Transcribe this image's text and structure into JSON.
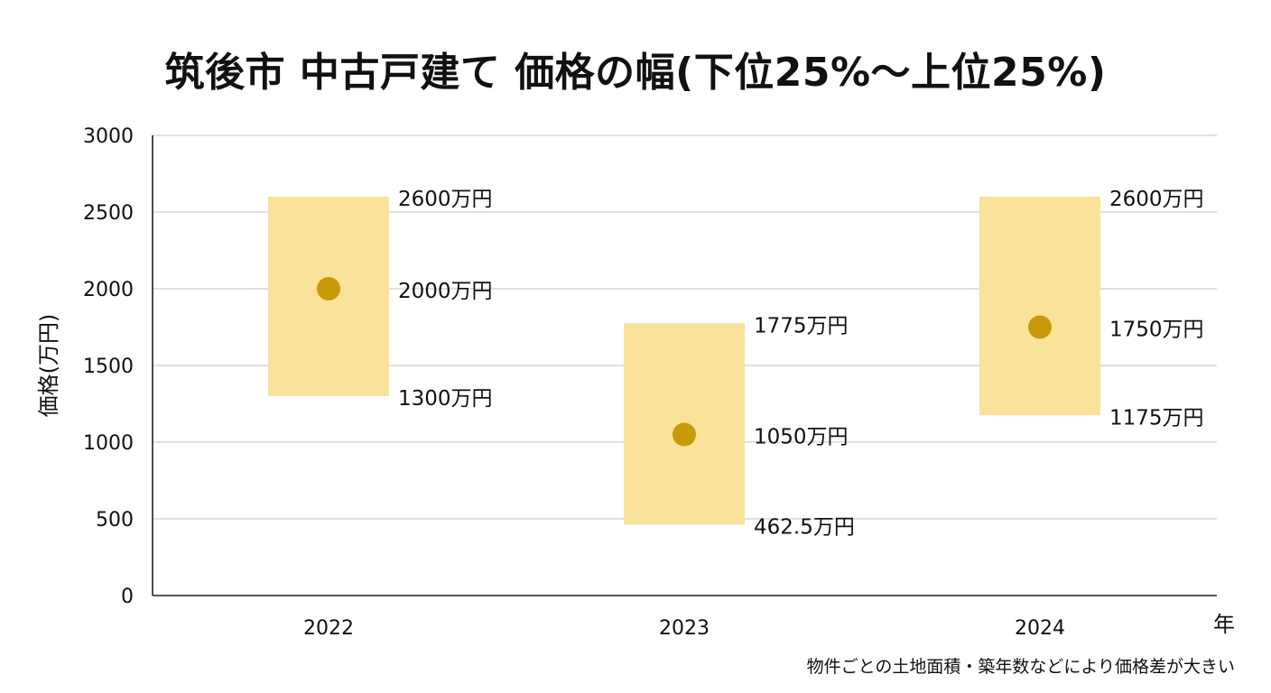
{
  "chart_data": {
    "type": "range",
    "title": "筑後市 中古戸建て 価格の幅(下位25%～上位25%)",
    "xlabel": "年",
    "ylabel": "価格(万円)",
    "ylim": [
      0,
      3000
    ],
    "yticks": [
      0,
      500,
      1000,
      1500,
      2000,
      2500,
      3000
    ],
    "grid": true,
    "categories": [
      "2022",
      "2023",
      "2024"
    ],
    "lower": [
      1300,
      462.5,
      1175
    ],
    "median": [
      2000,
      1050,
      1750
    ],
    "upper": [
      2600,
      1775,
      2600
    ],
    "lower_labels": [
      "1300万円",
      "462.5万円",
      "1175万円"
    ],
    "median_labels": [
      "2000万円",
      "1050万円",
      "1750万円"
    ],
    "upper_labels": [
      "2600万円",
      "1775万円",
      "2600万円"
    ],
    "colors": {
      "band": "#FAE29A",
      "point": "#C89A0A",
      "grid": "#cfcfcf",
      "axis": "#222222"
    }
  },
  "footnote": "物件ごとの土地面積・築年数などにより価格差が大きい"
}
